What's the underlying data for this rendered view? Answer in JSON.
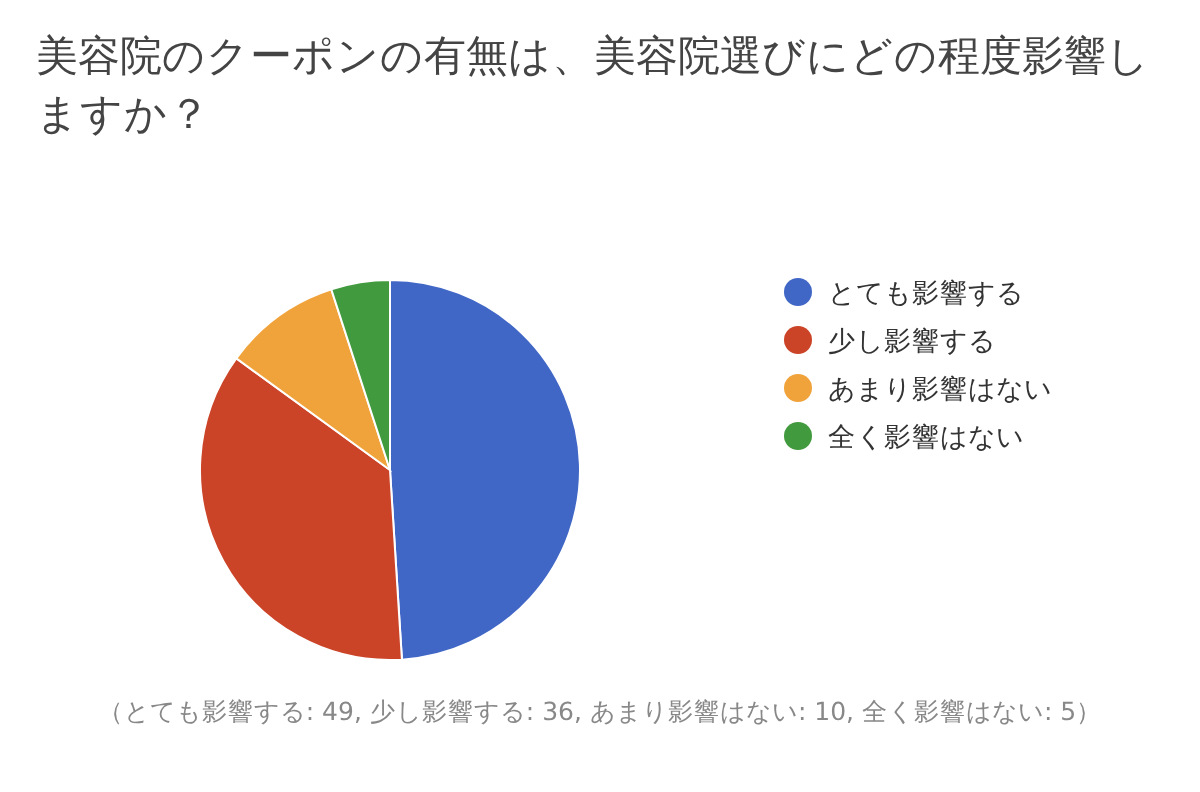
{
  "chart_data": {
    "type": "pie",
    "title": "美容院のクーポンの有無は、美容院選びにどの程度影響しますか？",
    "categories": [
      "とても影響する",
      "少し影響する",
      "あまり影響はない",
      "全く影響はない"
    ],
    "values": [
      49,
      36,
      10,
      5
    ],
    "colors": [
      "#4167c6",
      "#cb4428",
      "#f1a33b",
      "#419a3d"
    ],
    "legend": "right",
    "annotations": [
      "（とても影響する: 49, 少し影響する: 36, あまり影響はない: 10, 全く影響はない: 5）"
    ]
  }
}
